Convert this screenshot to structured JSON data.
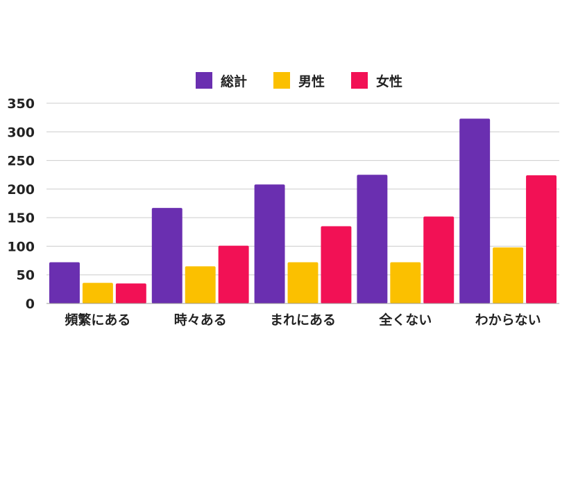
{
  "chart_data": {
    "type": "bar",
    "categories": [
      "頻繁にある",
      "時々ある",
      "まれにある",
      "全くない",
      "わからない"
    ],
    "series": [
      {
        "name": "総計",
        "color": "#6a2fb0",
        "values": [
          72,
          167,
          208,
          225,
          323
        ]
      },
      {
        "name": "男性",
        "color": "#fbc000",
        "values": [
          36,
          65,
          72,
          72,
          98
        ]
      },
      {
        "name": "女性",
        "color": "#f21155",
        "values": [
          35,
          101,
          135,
          152,
          224
        ]
      }
    ],
    "ylim": [
      0,
      350
    ],
    "yticks": [
      0,
      50,
      100,
      150,
      200,
      250,
      300,
      350
    ],
    "grid": true,
    "legend": "top-center"
  }
}
